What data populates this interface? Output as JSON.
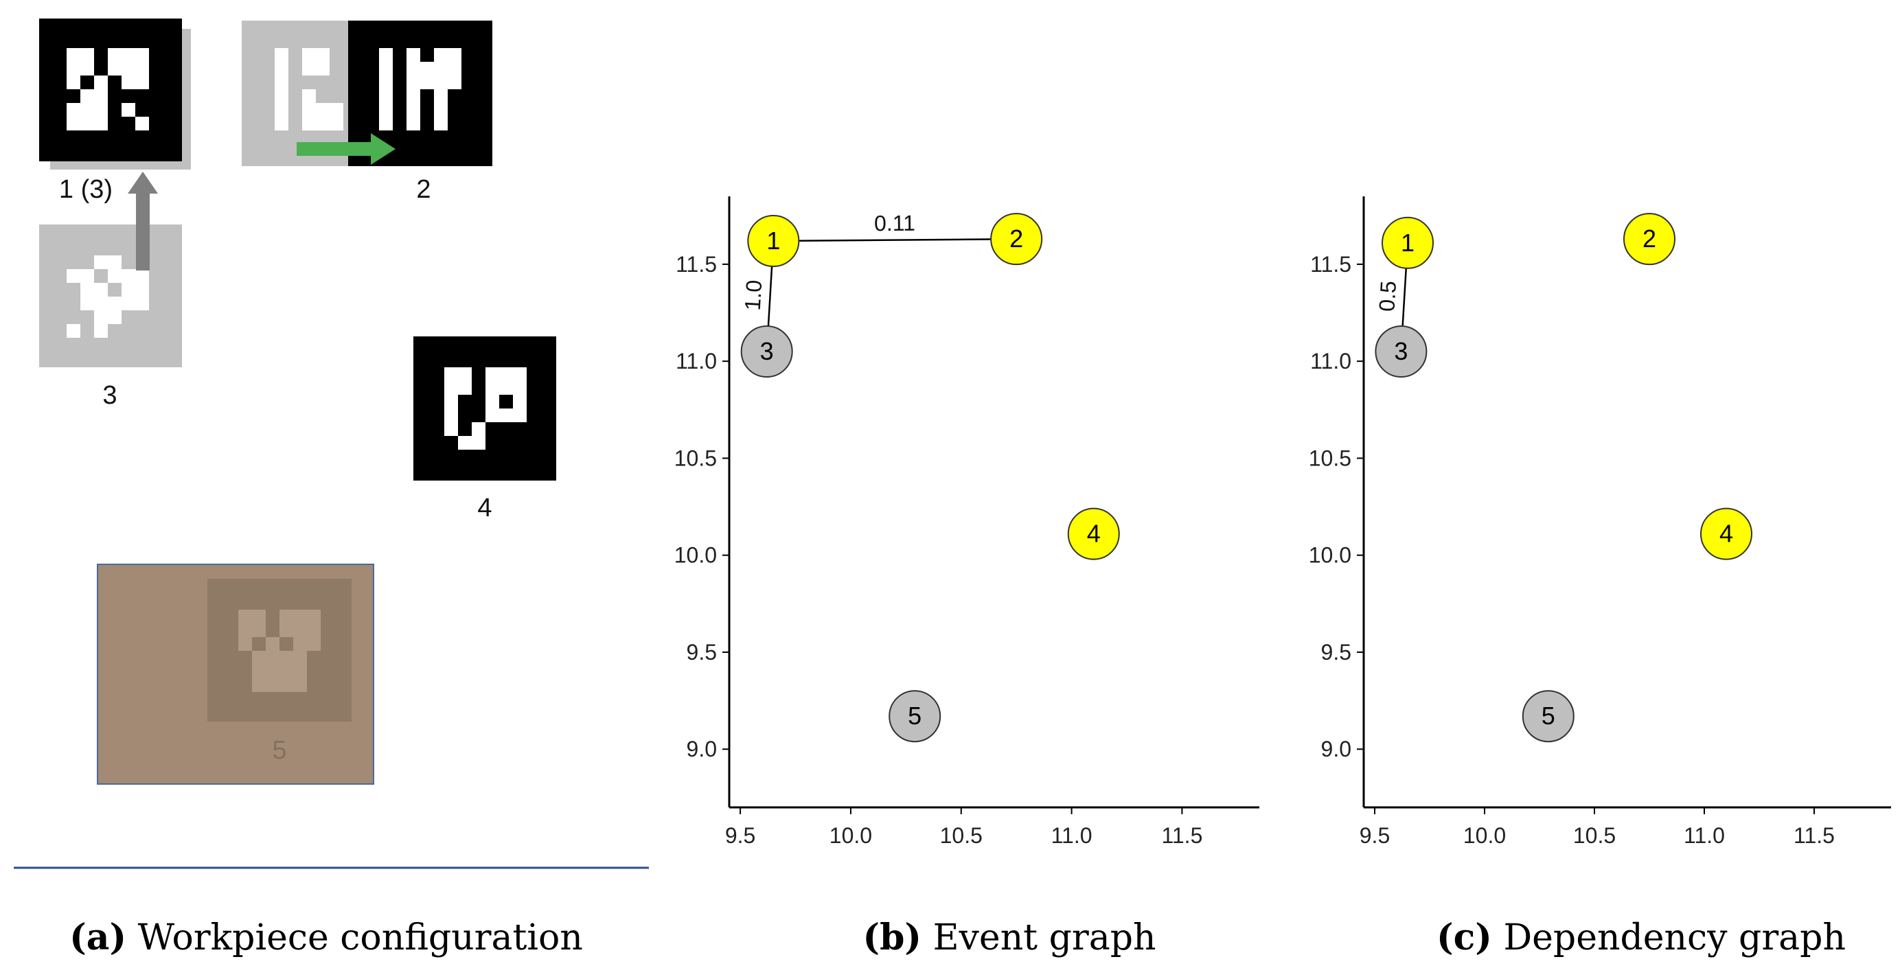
{
  "panel_a": {
    "marker_labels": {
      "m1": "1 (3)",
      "m2": "2",
      "m3": "3",
      "m4": "4",
      "m5": "5"
    },
    "colors": {
      "marker": "#000000",
      "faded_marker": "#c0c0c0",
      "arrow_up": "#7f7f7f",
      "arrow_right": "#4caf50",
      "workpiece_5": "#a38a74",
      "divider": "#2f4f8f"
    }
  },
  "captions": {
    "a": {
      "label": "(a)",
      "text": "Workpiece configuration"
    },
    "b": {
      "label": "(b)",
      "text": "Event graph"
    },
    "c": {
      "label": "(c)",
      "text": "Dependency graph"
    }
  },
  "chart_data": [
    {
      "type": "scatter",
      "xlim": [
        9.45,
        11.85
      ],
      "ylim": [
        8.7,
        11.85
      ],
      "xticks": [
        "9.5",
        "10.0",
        "10.5",
        "11.0",
        "11.5"
      ],
      "yticks": [
        "9.0",
        "9.5",
        "10.0",
        "10.5",
        "11.0",
        "11.5"
      ],
      "nodes": [
        {
          "id": "1",
          "x": 9.65,
          "y": 11.62,
          "color": "#ffff00"
        },
        {
          "id": "2",
          "x": 10.75,
          "y": 11.63,
          "color": "#ffff00"
        },
        {
          "id": "3",
          "x": 9.62,
          "y": 11.05,
          "color": "#bfbfbf"
        },
        {
          "id": "4",
          "x": 11.1,
          "y": 10.11,
          "color": "#ffff00"
        },
        {
          "id": "5",
          "x": 10.29,
          "y": 9.17,
          "color": "#bfbfbf"
        }
      ],
      "edges": [
        {
          "from": "1",
          "to": "2",
          "label": "0.11"
        },
        {
          "from": "1",
          "to": "3",
          "label": "1.0"
        }
      ]
    },
    {
      "type": "scatter",
      "xlim": [
        9.45,
        11.85
      ],
      "ylim": [
        8.7,
        11.85
      ],
      "xticks": [
        "9.5",
        "10.0",
        "10.5",
        "11.0",
        "11.5"
      ],
      "yticks": [
        "9.0",
        "9.5",
        "10.0",
        "10.5",
        "11.0",
        "11.5"
      ],
      "nodes": [
        {
          "id": "1",
          "x": 9.65,
          "y": 11.61,
          "color": "#ffff00"
        },
        {
          "id": "2",
          "x": 10.75,
          "y": 11.63,
          "color": "#ffff00"
        },
        {
          "id": "3",
          "x": 9.62,
          "y": 11.05,
          "color": "#bfbfbf"
        },
        {
          "id": "4",
          "x": 11.1,
          "y": 10.11,
          "color": "#ffff00"
        },
        {
          "id": "5",
          "x": 10.29,
          "y": 9.17,
          "color": "#bfbfbf"
        }
      ],
      "edges": [
        {
          "from": "1",
          "to": "3",
          "label": "0.5"
        }
      ]
    }
  ]
}
